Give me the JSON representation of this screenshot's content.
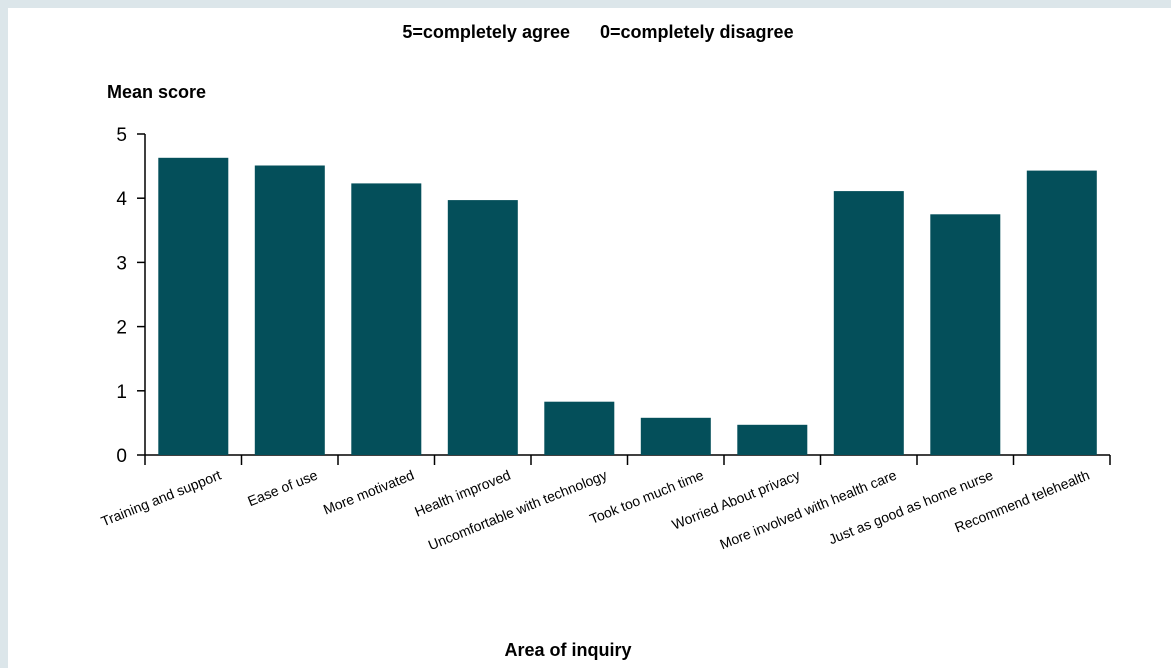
{
  "chart_data": {
    "type": "bar",
    "title": "5=completely agree      0=completely disagree",
    "ylabel": "Mean score",
    "xlabel": "Area of inquiry",
    "ylim": [
      0,
      5
    ],
    "yticks": [
      0,
      1,
      2,
      3,
      4,
      5
    ],
    "grid": false,
    "bar_color": "#044f5a",
    "categories": [
      "Training and support",
      "Ease of use",
      "More motivated",
      "Health improved",
      "Uncomfortable with technology",
      "Took too much time",
      "Worried About privacy",
      "More involved with health care",
      "Just as good as home nurse",
      "Recommend telehealth"
    ],
    "values": [
      4.63,
      4.51,
      4.23,
      3.97,
      0.83,
      0.58,
      0.47,
      4.11,
      3.75,
      4.43
    ]
  }
}
